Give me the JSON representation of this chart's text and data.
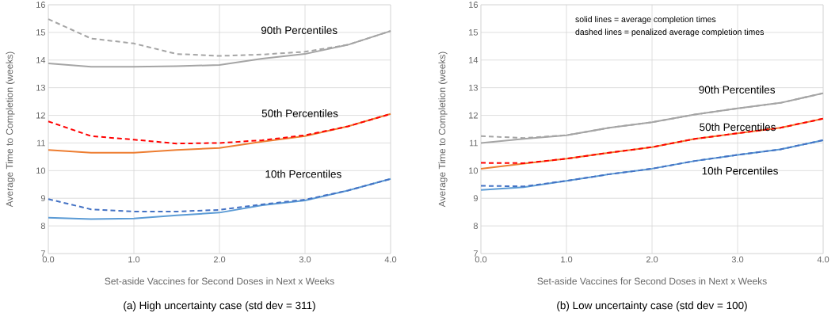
{
  "chart_data": [
    {
      "type": "line",
      "title": "(a) High uncertainty case (std dev = 311)",
      "xlabel": "Set-aside Vaccines for Second Doses in Next x Weeks",
      "ylabel": "Average Time to Completion (weeks)",
      "x": [
        0,
        0.5,
        1.0,
        1.5,
        2.0,
        2.5,
        3.0,
        3.5,
        4.0
      ],
      "xlim": [
        0,
        4
      ],
      "xticks": [
        {
          "value": 0,
          "label": "0.0"
        },
        {
          "value": 1,
          "label": "1.0"
        },
        {
          "value": 2,
          "label": "2.0"
        },
        {
          "value": 3,
          "label": "3.0"
        },
        {
          "value": 4,
          "label": "4.0"
        }
      ],
      "ylim": [
        7,
        16
      ],
      "yticks": [
        7,
        8,
        9,
        10,
        11,
        12,
        13,
        14,
        15,
        16
      ],
      "grid": true,
      "series": [
        {
          "color": "#a5a5a5",
          "line_style": "solid",
          "values": [
            13.88,
            13.76,
            13.76,
            13.78,
            13.82,
            14.05,
            14.22,
            14.55,
            15.05
          ]
        },
        {
          "color": "#a5a5a5",
          "line_style": "dashed",
          "values": [
            15.48,
            14.78,
            14.6,
            14.22,
            14.15,
            14.2,
            14.3,
            14.55,
            15.05
          ]
        },
        {
          "color": "#ed7d31",
          "line_style": "solid",
          "values": [
            10.75,
            10.65,
            10.65,
            10.75,
            10.82,
            11.05,
            11.25,
            11.6,
            12.05
          ]
        },
        {
          "color": "#ff0000",
          "line_style": "dashed",
          "values": [
            11.78,
            11.25,
            11.12,
            10.98,
            11.0,
            11.1,
            11.28,
            11.6,
            12.05
          ]
        },
        {
          "color": "#5b9bd5",
          "line_style": "solid",
          "values": [
            8.3,
            8.25,
            8.27,
            8.38,
            8.48,
            8.75,
            8.92,
            9.28,
            9.7
          ]
        },
        {
          "color": "#4472c4",
          "line_style": "dashed",
          "values": [
            8.97,
            8.6,
            8.52,
            8.52,
            8.58,
            8.78,
            8.95,
            9.28,
            9.7
          ]
        }
      ],
      "annotations": [
        "90th Percentiles",
        "50th Percentiles",
        "10th Percentiles"
      ]
    },
    {
      "type": "line",
      "title": "(b) Low uncertainty case (std dev = 100)",
      "xlabel": "Set-aside Vaccines for Second Doses in Next x Weeks",
      "ylabel": "Average Time to Completion (weeks)",
      "x": [
        0,
        0.5,
        1.0,
        1.5,
        2.0,
        2.5,
        3.0,
        3.5,
        4.0
      ],
      "xlim": [
        0,
        4
      ],
      "xticks": [
        {
          "value": 0,
          "label": "0.0"
        },
        {
          "value": 1,
          "label": "1.0"
        },
        {
          "value": 2,
          "label": "2.0"
        },
        {
          "value": 3,
          "label": "3.0"
        },
        {
          "value": 4,
          "label": "4.0"
        }
      ],
      "ylim": [
        7,
        16
      ],
      "yticks": [
        7,
        8,
        9,
        10,
        11,
        12,
        13,
        14,
        15,
        16
      ],
      "grid": true,
      "series": [
        {
          "color": "#a5a5a5",
          "line_style": "solid",
          "values": [
            11.0,
            11.15,
            11.28,
            11.55,
            11.75,
            12.03,
            12.25,
            12.45,
            12.8
          ]
        },
        {
          "color": "#a5a5a5",
          "line_style": "dashed",
          "values": [
            11.25,
            11.18,
            11.28,
            11.55,
            11.75,
            12.03,
            12.25,
            12.45,
            12.8
          ]
        },
        {
          "color": "#ed7d31",
          "line_style": "solid",
          "values": [
            10.07,
            10.25,
            10.43,
            10.65,
            10.85,
            11.15,
            11.35,
            11.55,
            11.88
          ]
        },
        {
          "color": "#ff0000",
          "line_style": "dashed",
          "values": [
            10.28,
            10.27,
            10.43,
            10.65,
            10.85,
            11.15,
            11.35,
            11.55,
            11.88
          ]
        },
        {
          "color": "#5b9bd5",
          "line_style": "solid",
          "values": [
            9.3,
            9.4,
            9.63,
            9.87,
            10.07,
            10.35,
            10.57,
            10.77,
            11.1
          ]
        },
        {
          "color": "#4472c4",
          "line_style": "dashed",
          "values": [
            9.45,
            9.43,
            9.63,
            9.87,
            10.07,
            10.35,
            10.57,
            10.77,
            11.1
          ]
        }
      ],
      "annotations": [
        "90th Percentiles",
        "50th Percentiles",
        "10th Percentiles",
        "solid lines = average completion times",
        "dashed lines = penalized average completion times"
      ]
    }
  ]
}
